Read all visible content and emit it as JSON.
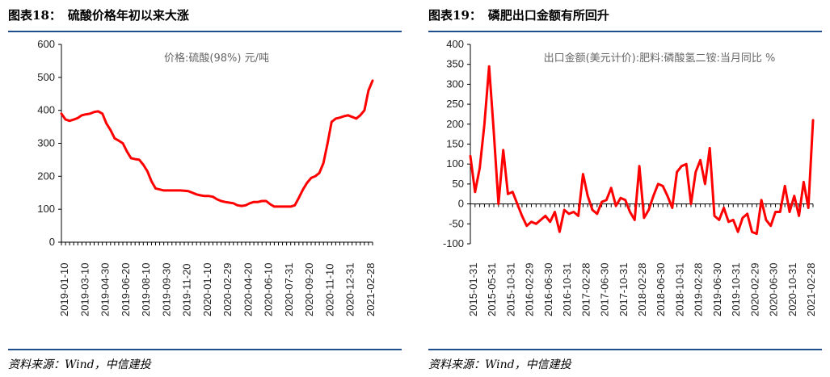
{
  "panels": [
    {
      "title_prefix": "图表",
      "title_num": "18",
      "title_sep": "：",
      "title_text": "硫酸价格年初以来大涨",
      "source": "资料来源：Wind，中信建投"
    },
    {
      "title_prefix": "图表",
      "title_num": "19",
      "title_sep": "：",
      "title_text": "磷肥出口金额有所回升",
      "source": "资料来源：Wind，中信建投"
    }
  ],
  "chart_data": [
    {
      "type": "line",
      "series": [
        {
          "name": "价格:硫酸(98%) 元/吨",
          "color": "#ff0000",
          "values": [
            390,
            372,
            368,
            372,
            377,
            385,
            388,
            390,
            395,
            397,
            390,
            360,
            340,
            315,
            308,
            300,
            275,
            255,
            252,
            250,
            235,
            215,
            185,
            163,
            160,
            157,
            157,
            157,
            157,
            157,
            156,
            155,
            150,
            145,
            142,
            140,
            140,
            138,
            130,
            125,
            122,
            120,
            118,
            112,
            110,
            112,
            118,
            122,
            122,
            125,
            125,
            115,
            108,
            108,
            108,
            108,
            108,
            112,
            135,
            160,
            180,
            195,
            200,
            210,
            240,
            300,
            365,
            375,
            378,
            382,
            385,
            380,
            375,
            385,
            400,
            460,
            490
          ]
        }
      ],
      "x_tick_labels": [
        "2019-01-10",
        "2019-03-10",
        "2019-04-30",
        "2019-06-20",
        "2019-08-10",
        "2019-09-30",
        "2019-11-20",
        "2020-01-10",
        "2020-02-29",
        "2020-04-20",
        "2020-06-10",
        "2020-07-31",
        "2020-09-20",
        "2020-11-10",
        "2020-12-31",
        "2021-02-28"
      ],
      "y_ticks": [
        0,
        100,
        200,
        300,
        400,
        500,
        600
      ],
      "ylim": [
        0,
        600
      ]
    },
    {
      "type": "line",
      "series": [
        {
          "name": "出口金额(美元计价):肥料:磷酸氢二铵:当月同比 %",
          "color": "#ff0000",
          "values": [
            120,
            30,
            90,
            200,
            345,
            180,
            0,
            135,
            25,
            30,
            0,
            -30,
            -55,
            -45,
            -50,
            -40,
            -30,
            -45,
            -20,
            -70,
            -15,
            -25,
            -20,
            -30,
            75,
            20,
            -15,
            -25,
            5,
            10,
            40,
            -5,
            15,
            10,
            -20,
            -40,
            95,
            -35,
            -15,
            20,
            50,
            45,
            20,
            -10,
            80,
            95,
            100,
            0,
            80,
            110,
            50,
            140,
            -30,
            -40,
            -10,
            -45,
            -40,
            -70,
            -35,
            -25,
            -70,
            -75,
            10,
            -40,
            -55,
            -20,
            -20,
            45,
            -20,
            20,
            -30,
            55,
            -10,
            210
          ],
          "line_width": 3
        }
      ],
      "x_tick_labels": [
        "2015-01-31",
        "2015-05-31",
        "2015-10-31",
        "2016-02-29",
        "2016-06-30",
        "2016-10-31",
        "2017-02-28",
        "2017-06-30",
        "2017-10-31",
        "2018-02-28",
        "2018-06-30",
        "2018-10-31",
        "2019-02-28",
        "2019-06-30",
        "2019-10-31",
        "2020-02-29",
        "2020-06-30",
        "2020-10-31",
        "2021-02-28"
      ],
      "y_ticks": [
        -100,
        -50,
        0,
        50,
        100,
        150,
        200,
        250,
        300,
        350,
        400
      ],
      "ylim": [
        -100,
        400
      ]
    }
  ]
}
